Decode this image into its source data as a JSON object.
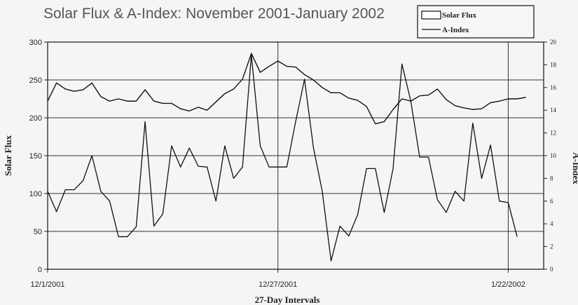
{
  "chart_data": {
    "type": "line",
    "title": "Solar Flux & A-Index: November 2001-January 2002",
    "xlabel": "27-Day Intervals",
    "ylabel": "Solar Flux",
    "ylabel_right": "A-Index",
    "x_ticks": [
      {
        "label": "12/1/2001",
        "day": 0
      },
      {
        "label": "12/27/2001",
        "day": 26
      },
      {
        "label": "1/22/2002",
        "day": 52
      }
    ],
    "xlim": [
      0,
      56
    ],
    "ylim": [
      0,
      300
    ],
    "ylim_right": [
      0,
      20
    ],
    "yticks": [
      0,
      50,
      100,
      150,
      200,
      250,
      300
    ],
    "yticks_right": [
      0,
      2,
      4,
      6,
      8,
      10,
      12,
      14,
      16,
      18,
      20
    ],
    "legend": {
      "position": "top-right",
      "entries": [
        "Solar Flux",
        "A-Index"
      ]
    },
    "series": [
      {
        "name": "Solar Flux",
        "axis": "left",
        "values": [
          222,
          246,
          238,
          235,
          237,
          246,
          228,
          222,
          225,
          222,
          222,
          237,
          222,
          219,
          219,
          212,
          209,
          214,
          210,
          221,
          232,
          238,
          251,
          285,
          260,
          268,
          275,
          268,
          267,
          257,
          250,
          240,
          233,
          233,
          226,
          223,
          215,
          192,
          195,
          211,
          225,
          222,
          229,
          230,
          238,
          224,
          216,
          213,
          211,
          212,
          220,
          222,
          225,
          225,
          227
        ]
      },
      {
        "name": "A-Index",
        "axis": "left",
        "values": [
          103,
          76,
          105,
          105,
          117,
          150,
          103,
          90,
          43,
          43,
          56,
          195,
          57,
          73,
          163,
          135,
          160,
          136,
          135,
          90,
          163,
          120,
          135,
          283,
          163,
          135,
          135,
          135,
          195,
          251,
          161,
          103,
          11,
          57,
          44,
          72,
          133,
          133,
          75,
          133,
          271,
          222,
          148,
          148,
          92,
          75,
          103,
          90,
          193,
          120,
          164,
          90,
          88,
          43
        ]
      }
    ]
  }
}
